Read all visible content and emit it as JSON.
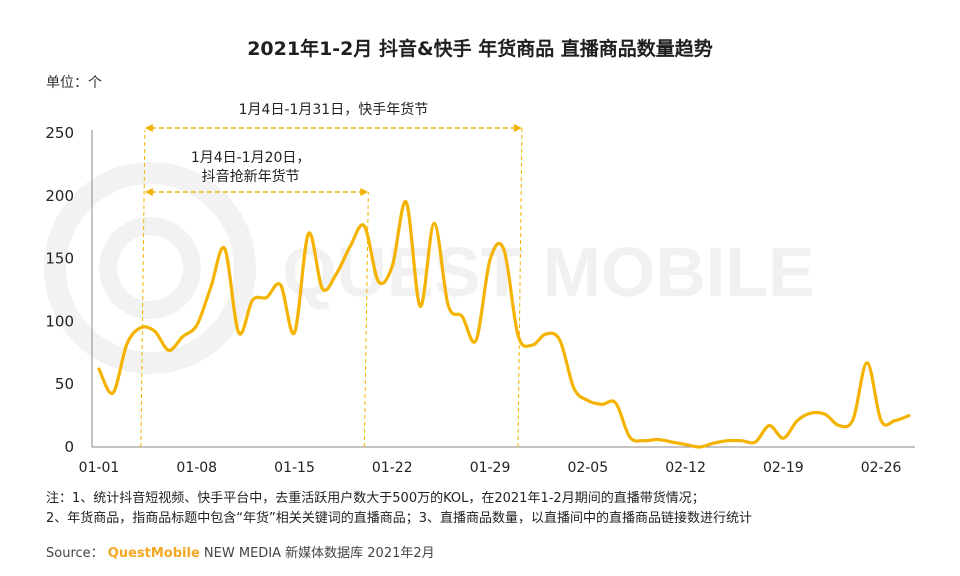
{
  "title": "2021年1-2月 抖音&快手 年货商品 直播商品数量趋势",
  "unit_label": "单位：个",
  "watermark": "QUEST MOBILE",
  "notes": {
    "line1": "注：1、统计抖音短视频、快手平台中，去重活跃用户数大于500万的KOL，在2021年1-2月期间的直播带货情况；",
    "line2": "2、年货商品，指商品标题中包含“年货”相关关键词的直播商品；3、直播商品数量，以直播间中的直播商品链接数进行统计"
  },
  "source": {
    "prefix": "Source：",
    "brand": "QuestMobile",
    "suffix": "NEW MEDIA 新媒体数据库 2021年2月"
  },
  "colors": {
    "line": "#f5b301",
    "annotation": "#f5b301",
    "axis": "#888888"
  },
  "chart_data": {
    "type": "line",
    "title": "2021年1-2月 抖音&快手 年货商品 直播商品数量趋势",
    "ylabel": "单位：个",
    "ylim": [
      0,
      250
    ],
    "yticks": [
      0,
      50,
      100,
      150,
      200,
      250
    ],
    "grid": false,
    "xtick_labels": [
      "01-01",
      "01-08",
      "01-15",
      "01-22",
      "01-29",
      "02-05",
      "02-12",
      "02-19",
      "02-26"
    ],
    "x": [
      "01-01",
      "01-02",
      "01-03",
      "01-04",
      "01-05",
      "01-06",
      "01-07",
      "01-08",
      "01-09",
      "01-10",
      "01-11",
      "01-12",
      "01-13",
      "01-14",
      "01-15",
      "01-16",
      "01-17",
      "01-18",
      "01-19",
      "01-20",
      "01-21",
      "01-22",
      "01-23",
      "01-24",
      "01-25",
      "01-26",
      "01-27",
      "01-28",
      "01-29",
      "01-30",
      "01-31",
      "02-01",
      "02-02",
      "02-03",
      "02-04",
      "02-05",
      "02-06",
      "02-07",
      "02-08",
      "02-09",
      "02-10",
      "02-11",
      "02-12",
      "02-13",
      "02-14",
      "02-15",
      "02-16",
      "02-17",
      "02-18",
      "02-19",
      "02-20",
      "02-21",
      "02-22",
      "02-23",
      "02-24",
      "02-25",
      "02-26",
      "02-27",
      "02-28"
    ],
    "values": [
      62,
      43,
      82,
      95,
      92,
      77,
      88,
      97,
      127,
      158,
      91,
      117,
      119,
      129,
      91,
      170,
      126,
      138,
      160,
      176,
      132,
      144,
      195,
      112,
      178,
      113,
      104,
      85,
      149,
      157,
      89,
      81,
      90,
      85,
      47,
      37,
      34,
      35,
      8,
      5,
      6,
      4,
      2,
      0,
      3,
      5,
      5,
      4,
      17,
      7,
      21,
      27,
      26,
      17,
      22,
      67,
      21,
      21,
      25
    ],
    "annotations": [
      {
        "label": "1月4日-1月31日，快手年货节",
        "start": "01-04",
        "end": "01-31"
      },
      {
        "label_line1": "1月4日-1月20日，",
        "label_line2": "抖音抢新年货节",
        "start": "01-04",
        "end": "01-20"
      }
    ]
  }
}
